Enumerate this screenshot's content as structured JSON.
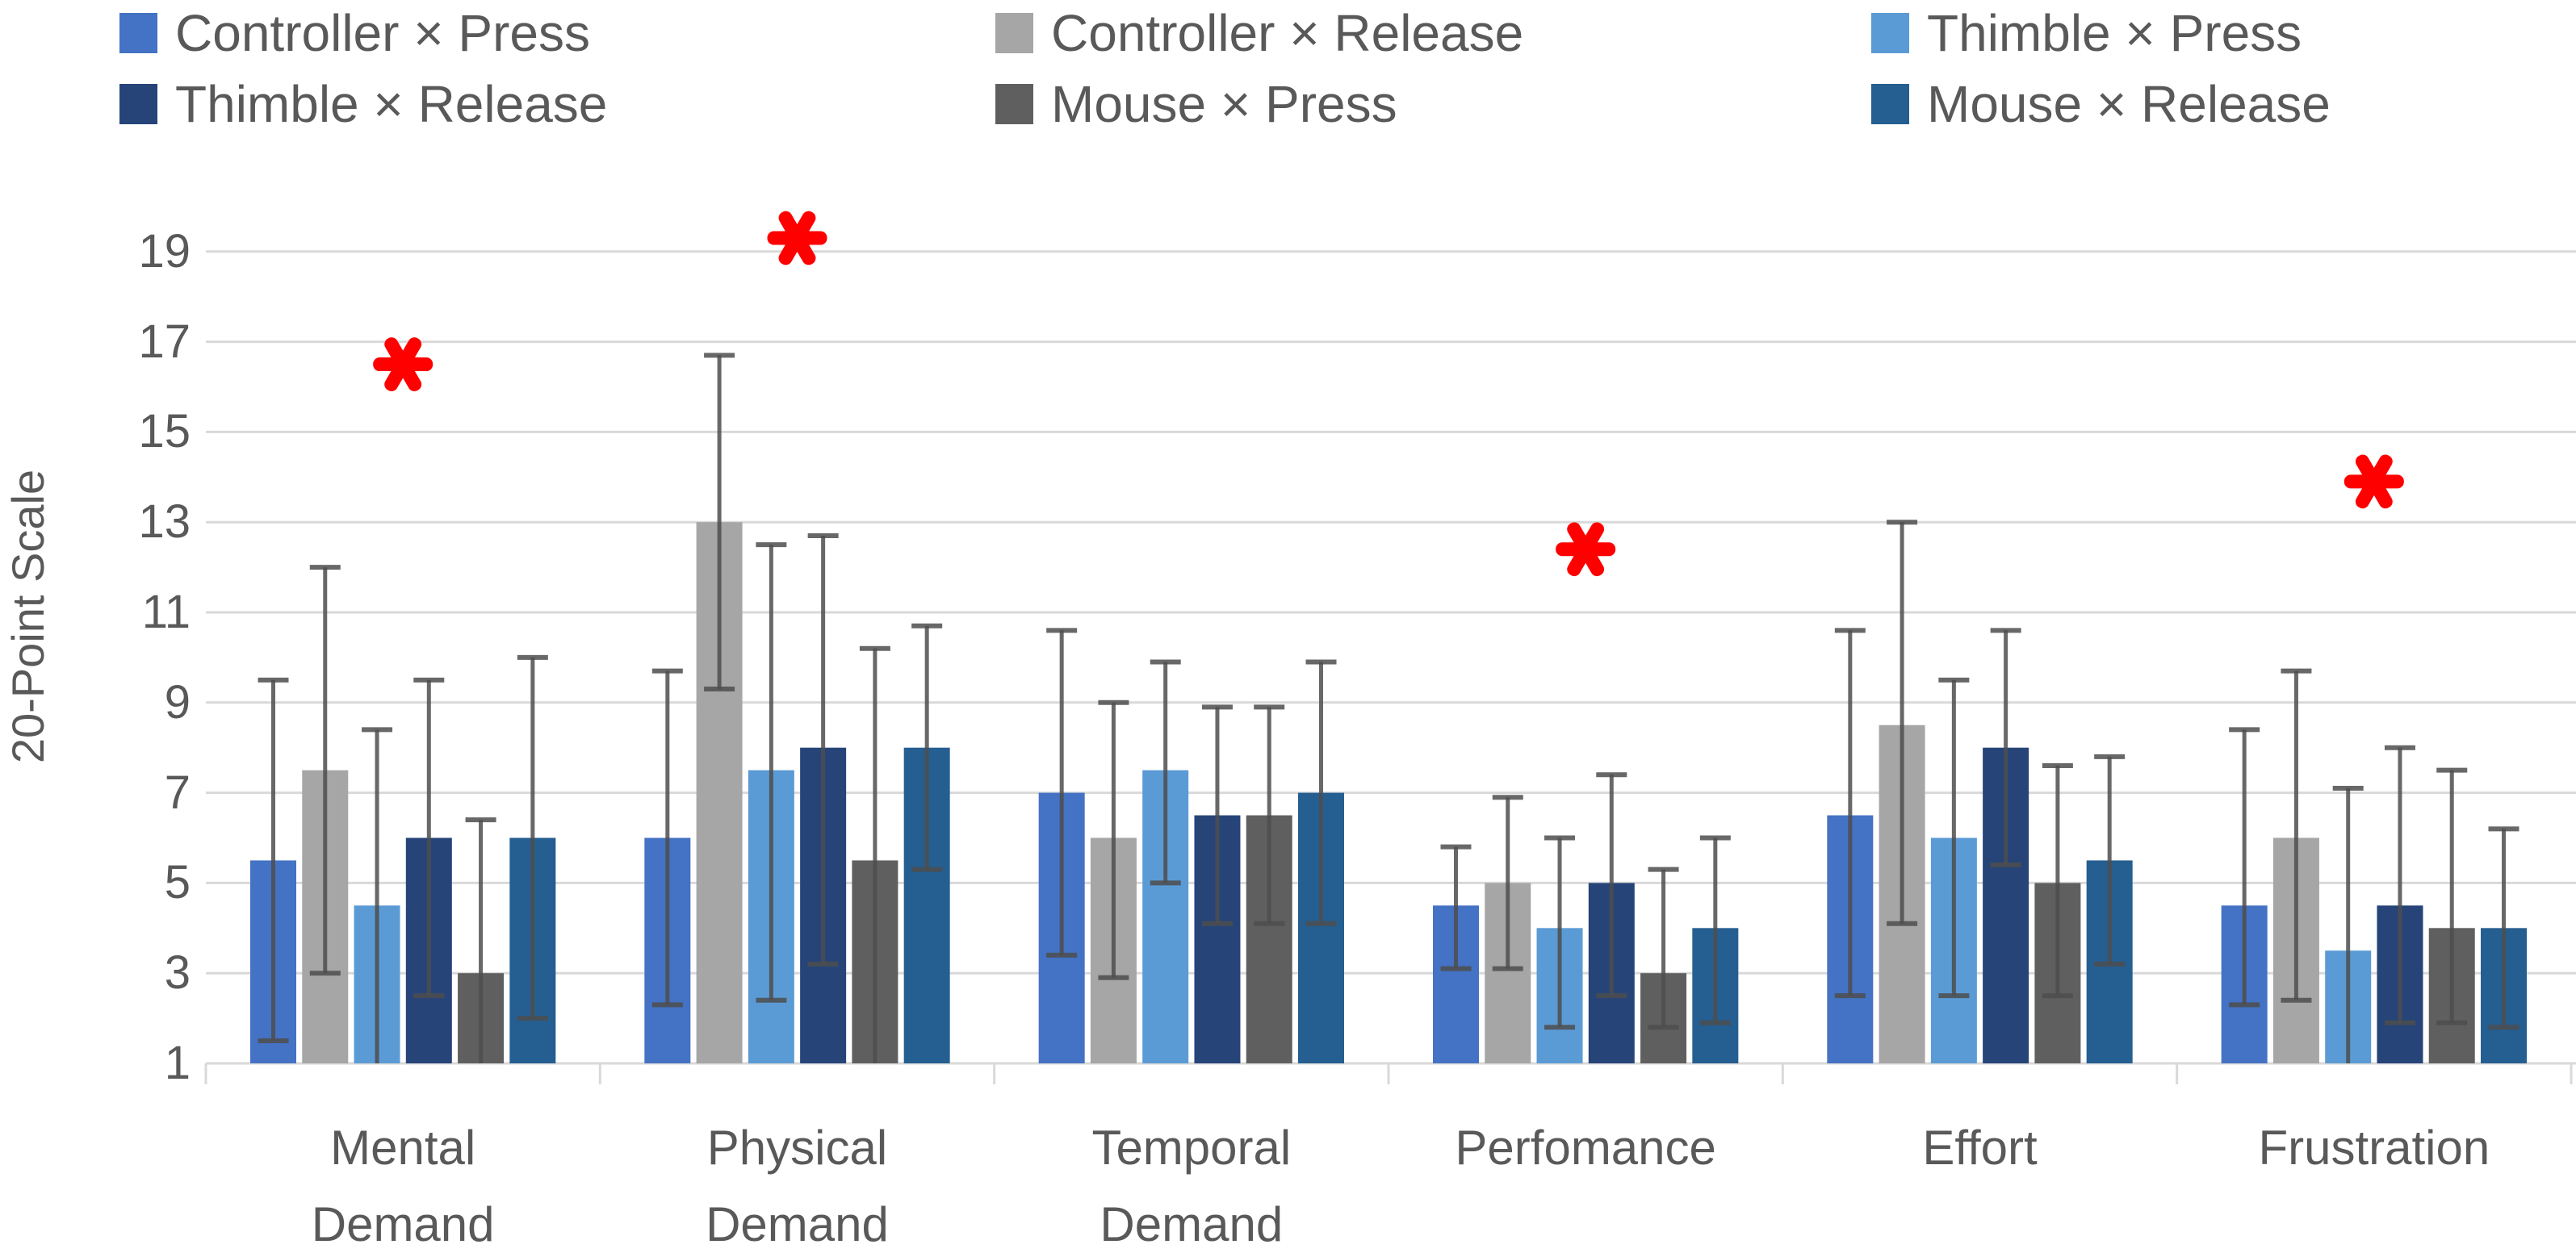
{
  "legend": {
    "items": [
      {
        "label": "Controller × Press",
        "color": "#4472C4"
      },
      {
        "label": "Controller × Release",
        "color": "#A6A6A6"
      },
      {
        "label": "Thimble × Press",
        "color": "#5B9BD5"
      },
      {
        "label": "Thimble × Release",
        "color": "#264478"
      },
      {
        "label": "Mouse × Press",
        "color": "#5F5F5F"
      },
      {
        "label": "Mouse × Release",
        "color": "#255E91"
      }
    ]
  },
  "chart_data": {
    "type": "bar",
    "title": "",
    "xlabel": "",
    "ylabel": "20-Point Scale",
    "ylim": [
      1,
      19
    ],
    "yticks": [
      1,
      3,
      5,
      7,
      9,
      11,
      13,
      15,
      17,
      19
    ],
    "grid": true,
    "legend_position": "top",
    "gridline_color": "#D9D9D9",
    "error_bar_color": "#4D4D4D",
    "categories": [
      "Mental\nDemand",
      "Physical\nDemand",
      "Temporal\nDemand",
      "Perfomance",
      "Effort",
      "Frustration"
    ],
    "series": [
      {
        "name": "Controller × Press",
        "color": "#4472C4",
        "values": [
          5.5,
          6,
          7,
          4.5,
          6.5,
          4.5
        ],
        "err_low": [
          1.5,
          2.3,
          3.4,
          3.1,
          2.5,
          2.3
        ],
        "err_high": [
          9.5,
          9.7,
          10.6,
          5.8,
          10.6,
          8.4
        ]
      },
      {
        "name": "Controller × Release",
        "color": "#A6A6A6",
        "values": [
          7.5,
          13,
          6,
          5,
          8.5,
          6
        ],
        "err_low": [
          3,
          9.3,
          2.9,
          3.1,
          4.1,
          2.4
        ],
        "err_high": [
          12,
          16.7,
          9,
          6.9,
          13,
          9.7
        ]
      },
      {
        "name": "Thimble × Press",
        "color": "#5B9BD5",
        "values": [
          4.5,
          7.5,
          7.5,
          4,
          6,
          3.5
        ],
        "err_low": [
          0.6,
          2.4,
          5,
          1.8,
          2.5,
          0.6
        ],
        "err_high": [
          8.4,
          12.5,
          9.9,
          6,
          9.5,
          7.1
        ]
      },
      {
        "name": "Thimble × Release",
        "color": "#264478",
        "values": [
          6,
          8,
          6.5,
          5,
          8,
          4.5
        ],
        "err_low": [
          2.5,
          3.2,
          4.1,
          2.5,
          5.4,
          1.9
        ],
        "err_high": [
          9.5,
          12.7,
          8.9,
          7.4,
          10.6,
          8
        ]
      },
      {
        "name": "Mouse × Press",
        "color": "#5F5F5F",
        "values": [
          3,
          5.5,
          6.5,
          3,
          5,
          4
        ],
        "err_low": [
          0.5,
          0.8,
          4.1,
          1.8,
          2.5,
          1.9
        ],
        "err_high": [
          6.4,
          10.2,
          8.9,
          5.3,
          7.6,
          7.5
        ]
      },
      {
        "name": "Mouse × Release",
        "color": "#255E91",
        "values": [
          6,
          8,
          7,
          4,
          5.5,
          4
        ],
        "err_low": [
          2,
          5.3,
          4.1,
          1.9,
          3.2,
          1.8
        ],
        "err_high": [
          10,
          10.7,
          9.9,
          6,
          7.8,
          6.2
        ]
      }
    ],
    "annotations": {
      "symbol": "*",
      "color": "#FF0000",
      "items": [
        {
          "category_index": 0,
          "category": "Mental Demand",
          "y": 16.5
        },
        {
          "category_index": 1,
          "category": "Physical Demand",
          "y": 19.3
        },
        {
          "category_index": 3,
          "category": "Perfomance",
          "y": 12.4
        },
        {
          "category_index": 5,
          "category": "Frustration",
          "y": 13.9
        }
      ]
    }
  }
}
